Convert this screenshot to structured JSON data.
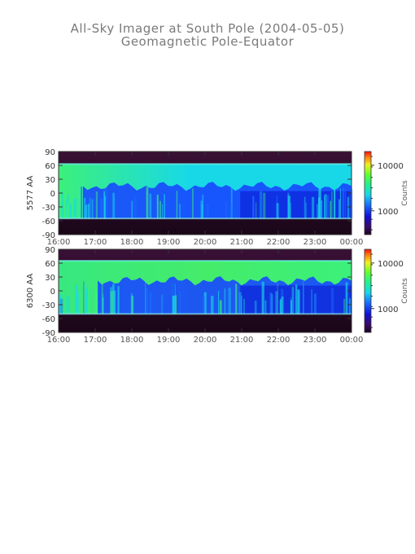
{
  "chart_data": {
    "type": "heatmap",
    "title": "All-Sky Imager at South Pole (2004-05-05)",
    "subtitle": "Geomagnetic Pole-Equator",
    "colors": {
      "background_dark": "#2a0a2a",
      "band_green": "#3cf07a",
      "band_cyan": "#18d8e8",
      "band_blue": "#1848ff",
      "deep_blue": "#0a14d0",
      "axis": "#333333",
      "label": "#555555"
    },
    "panels": [
      {
        "ylabel": "5577 AA",
        "y_ticks": [
          "90",
          "60",
          "30",
          "0",
          "-30",
          "-60",
          "-90"
        ],
        "x_ticks": [
          "16:00",
          "17:00",
          "18:00",
          "19:00",
          "20:00",
          "21:00",
          "22:00",
          "23:00",
          "00:00"
        ],
        "ylim": [
          -90,
          90
        ],
        "colorbar_label": "Counts",
        "colorbar_ticks": [
          "10000",
          "1000"
        ],
        "colorbar_scale": "log",
        "valid_lat_range": [
          -55,
          63
        ]
      },
      {
        "ylabel": "6300 AA",
        "y_ticks": [
          "90",
          "60",
          "30",
          "0",
          "-30",
          "-60",
          "-90"
        ],
        "x_ticks": [
          "16:00",
          "17:00",
          "18:00",
          "19:00",
          "20:00",
          "21:00",
          "22:00",
          "23:00",
          "00:00"
        ],
        "ylim": [
          -90,
          90
        ],
        "colorbar_label": "Counts",
        "colorbar_ticks": [
          "10000",
          "1000"
        ],
        "colorbar_scale": "log",
        "valid_lat_range": [
          -50,
          65
        ]
      }
    ]
  }
}
